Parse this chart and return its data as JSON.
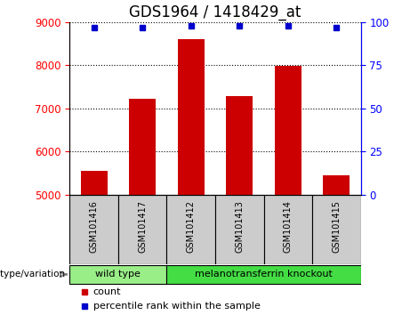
{
  "title": "GDS1964 / 1418429_at",
  "samples": [
    "GSM101416",
    "GSM101417",
    "GSM101412",
    "GSM101413",
    "GSM101414",
    "GSM101415"
  ],
  "counts": [
    5560,
    7220,
    8600,
    7280,
    7980,
    5460
  ],
  "percentile_ranks": [
    97,
    97,
    98,
    98,
    98,
    97
  ],
  "ylim_left": [
    5000,
    9000
  ],
  "yticks_left": [
    5000,
    6000,
    7000,
    8000,
    9000
  ],
  "ylim_right": [
    0,
    100
  ],
  "yticks_right": [
    0,
    25,
    50,
    75,
    100
  ],
  "bar_color": "#cc0000",
  "dot_color": "#0000cc",
  "groups": [
    {
      "label": "wild type",
      "indices": [
        0,
        1
      ],
      "color": "#99ee88"
    },
    {
      "label": "melanotransferrin knockout",
      "indices": [
        2,
        3,
        4,
        5
      ],
      "color": "#44dd44"
    }
  ],
  "sample_box_color": "#cccccc",
  "genotype_label": "genotype/variation",
  "legend_count_label": "count",
  "legend_pct_label": "percentile rank within the sample",
  "title_fontsize": 12,
  "tick_fontsize": 8.5,
  "sample_fontsize": 7,
  "group_fontsize": 8,
  "legend_fontsize": 8
}
